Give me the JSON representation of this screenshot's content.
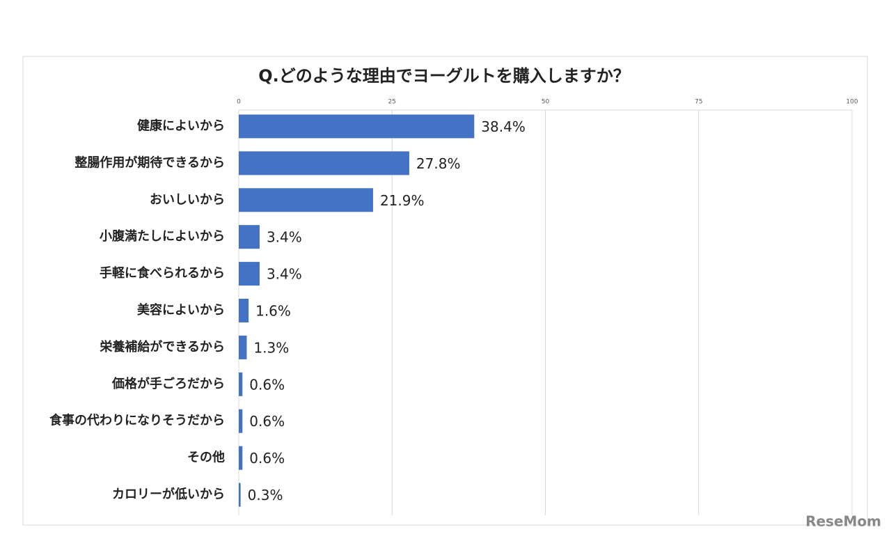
{
  "chart_data": {
    "type": "bar",
    "orientation": "horizontal",
    "title": "Q.どのような理由でヨーグルトを購入しますか？",
    "categories": [
      "健康によいから",
      "整腸作用が期待できるから",
      "おいしいから",
      "小腹満たしによいから",
      "手軽に食べられるから",
      "美容によいから",
      "栄養補給ができるから",
      "価格が手ごろだから",
      "食事の代わりになりそうだから",
      "その他",
      "カロリーが低いから"
    ],
    "values": [
      38.4,
      27.8,
      21.9,
      3.4,
      3.4,
      1.6,
      1.3,
      0.6,
      0.6,
      0.6,
      0.3
    ],
    "value_labels": [
      "38.4%",
      "27.8%",
      "21.9%",
      "3.4%",
      "3.4%",
      "1.6%",
      "1.3%",
      "0.6%",
      "0.6%",
      "0.6%",
      "0.3%"
    ],
    "color": "#4472c4",
    "xlim": [
      0,
      100
    ],
    "xticks": [
      0,
      25,
      50,
      75,
      100
    ],
    "grid": true,
    "watermark": "ReseMom"
  }
}
